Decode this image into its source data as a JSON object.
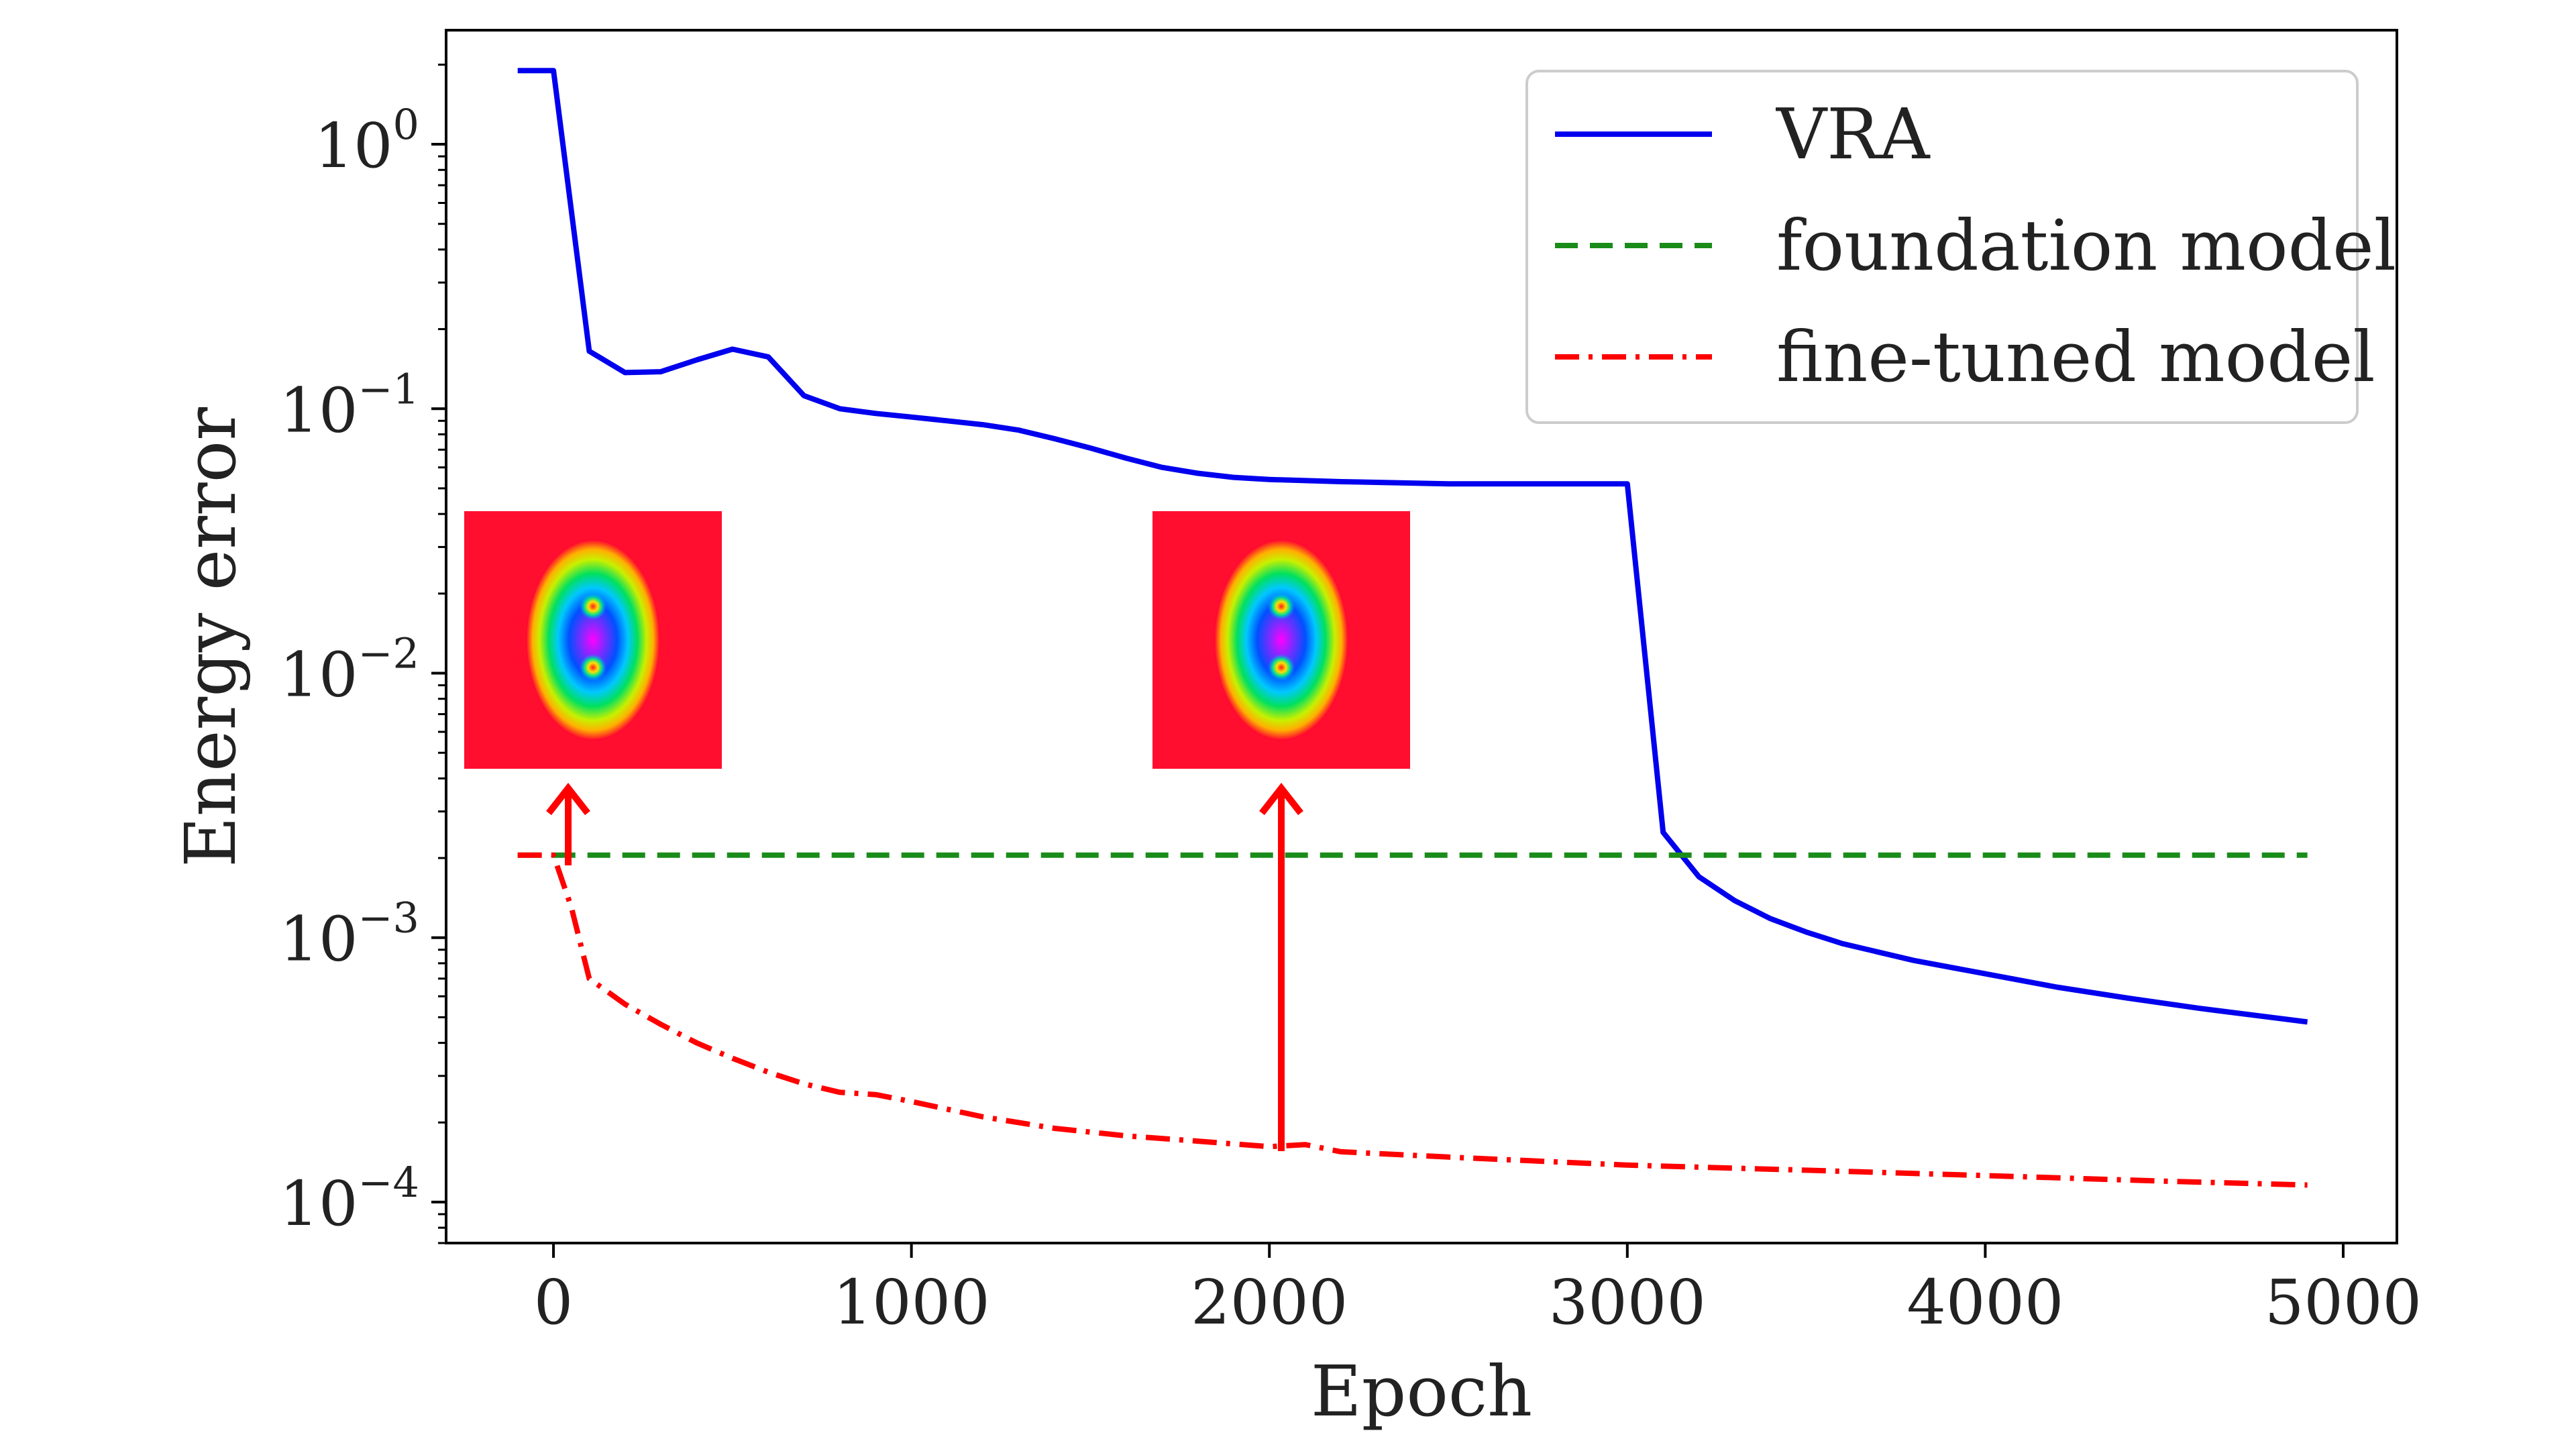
{
  "chart_data": {
    "type": "line",
    "title": "",
    "xlabel": "Epoch",
    "ylabel": "Energy error",
    "yscale": "log",
    "xlim": [
      -300,
      5150
    ],
    "ylim": [
      7e-05,
      2.7
    ],
    "x_ticks": [
      0,
      1000,
      2000,
      3000,
      4000,
      5000
    ],
    "x_tick_labels": [
      "0",
      "1000",
      "2000",
      "3000",
      "4000",
      "5000"
    ],
    "y_ticks": [
      1,
      0.1,
      0.01,
      0.001,
      0.0001
    ],
    "y_tick_labels": [
      {
        "base": "10",
        "exp": "0"
      },
      {
        "base": "10",
        "exp": "−1"
      },
      {
        "base": "10",
        "exp": "−2"
      },
      {
        "base": "10",
        "exp": "−3"
      },
      {
        "base": "10",
        "exp": "−4"
      }
    ],
    "grid": false,
    "legend_position": "top-right",
    "series": [
      {
        "name": "VRA",
        "color": "#0000ee",
        "style": "solid",
        "x": [
          -100,
          0,
          100,
          200,
          300,
          400,
          500,
          600,
          700,
          800,
          900,
          1000,
          1100,
          1200,
          1300,
          1400,
          1500,
          1600,
          1700,
          1800,
          1900,
          2000,
          2200,
          2500,
          2800,
          3000,
          3100,
          3200,
          3300,
          3400,
          3500,
          3600,
          3800,
          4000,
          4200,
          4400,
          4600,
          4900
        ],
        "y": [
          1.9,
          1.9,
          0.165,
          0.137,
          0.138,
          0.153,
          0.168,
          0.157,
          0.112,
          0.1,
          0.096,
          0.093,
          0.09,
          0.087,
          0.083,
          0.077,
          0.071,
          0.065,
          0.06,
          0.057,
          0.055,
          0.054,
          0.053,
          0.052,
          0.052,
          0.052,
          0.0025,
          0.0017,
          0.00138,
          0.00118,
          0.00105,
          0.00095,
          0.00082,
          0.00073,
          0.00065,
          0.00059,
          0.00054,
          0.00048
        ]
      },
      {
        "name": "foundation model",
        "color": "#1a8c1a",
        "style": "dashed",
        "x": [
          -100,
          4900
        ],
        "y": [
          0.00205,
          0.00205
        ]
      },
      {
        "name": "fine-tuned model",
        "color": "#ff0000",
        "style": "dashdot",
        "x": [
          -100,
          0,
          50,
          100,
          200,
          300,
          400,
          500,
          600,
          700,
          800,
          900,
          1000,
          1200,
          1400,
          1600,
          1800,
          2000,
          2100,
          2200,
          2500,
          3000,
          3500,
          4000,
          4500,
          4900
        ],
        "y": [
          0.00205,
          0.00205,
          0.0013,
          0.0007,
          0.00056,
          0.00047,
          0.0004,
          0.00035,
          0.00031,
          0.00028,
          0.00026,
          0.000255,
          0.00024,
          0.00021,
          0.00019,
          0.000178,
          0.00017,
          0.000162,
          0.000165,
          0.000155,
          0.000148,
          0.000138,
          0.000132,
          0.000126,
          0.00012,
          0.000116
        ]
      }
    ],
    "annotations": [
      {
        "type": "inset-image",
        "epoch": 0
      },
      {
        "type": "inset-image",
        "epoch": 2000
      }
    ]
  }
}
